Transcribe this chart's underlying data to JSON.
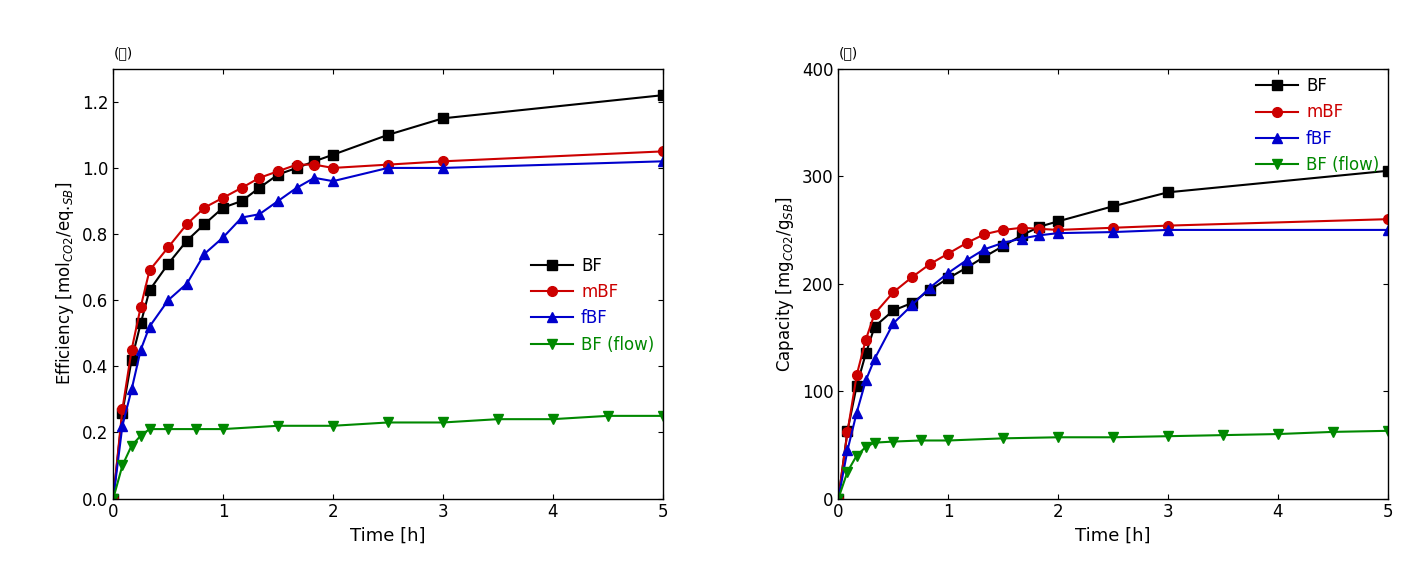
{
  "left_title": "(가)",
  "right_title": "(나)",
  "left_ylabel": "Efficiency [mol$_{CO2}$/eq.$_{SB}$]",
  "right_ylabel": "Capacity [mg$_{CO2}$/g$_{SB}$]",
  "xlabel": "Time [h]",
  "left_ylim": [
    0,
    1.3
  ],
  "right_ylim": [
    0,
    400
  ],
  "xlim": [
    0,
    5
  ],
  "series": {
    "BF": {
      "color": "#000000",
      "marker": "s",
      "markersize": 7,
      "left_x": [
        0,
        0.083,
        0.167,
        0.25,
        0.33,
        0.5,
        0.67,
        0.83,
        1.0,
        1.17,
        1.33,
        1.5,
        1.67,
        1.83,
        2.0,
        2.5,
        3.0,
        5.0
      ],
      "left_y": [
        0,
        0.26,
        0.42,
        0.53,
        0.63,
        0.71,
        0.78,
        0.83,
        0.88,
        0.9,
        0.94,
        0.98,
        1.0,
        1.02,
        1.04,
        1.1,
        1.15,
        1.22
      ],
      "right_x": [
        0,
        0.083,
        0.167,
        0.25,
        0.33,
        0.5,
        0.67,
        0.83,
        1.0,
        1.17,
        1.33,
        1.5,
        1.67,
        1.83,
        2.0,
        2.5,
        3.0,
        5.0
      ],
      "right_y": [
        0,
        63,
        105,
        135,
        160,
        175,
        182,
        194,
        205,
        215,
        225,
        235,
        245,
        253,
        258,
        272,
        285,
        305
      ]
    },
    "mBF": {
      "color": "#cc0000",
      "marker": "o",
      "markersize": 7,
      "left_x": [
        0,
        0.083,
        0.167,
        0.25,
        0.33,
        0.5,
        0.67,
        0.83,
        1.0,
        1.17,
        1.33,
        1.5,
        1.67,
        1.83,
        2.0,
        2.5,
        3.0,
        5.0
      ],
      "left_y": [
        0,
        0.27,
        0.45,
        0.58,
        0.69,
        0.76,
        0.83,
        0.88,
        0.91,
        0.94,
        0.97,
        0.99,
        1.01,
        1.01,
        1.0,
        1.01,
        1.02,
        1.05
      ],
      "right_x": [
        0,
        0.083,
        0.167,
        0.25,
        0.33,
        0.5,
        0.67,
        0.83,
        1.0,
        1.17,
        1.33,
        1.5,
        1.67,
        1.83,
        2.0,
        2.5,
        3.0,
        5.0
      ],
      "right_y": [
        0,
        62,
        115,
        148,
        172,
        192,
        206,
        218,
        228,
        238,
        246,
        250,
        252,
        251,
        250,
        252,
        254,
        260
      ]
    },
    "fBF": {
      "color": "#0000cc",
      "marker": "^",
      "markersize": 7,
      "left_x": [
        0,
        0.083,
        0.167,
        0.25,
        0.33,
        0.5,
        0.67,
        0.83,
        1.0,
        1.17,
        1.33,
        1.5,
        1.67,
        1.83,
        2.0,
        2.5,
        3.0,
        5.0
      ],
      "left_y": [
        0,
        0.22,
        0.33,
        0.45,
        0.52,
        0.6,
        0.65,
        0.74,
        0.79,
        0.85,
        0.86,
        0.9,
        0.94,
        0.97,
        0.96,
        1.0,
        1.0,
        1.02
      ],
      "right_x": [
        0,
        0.083,
        0.167,
        0.25,
        0.33,
        0.5,
        0.67,
        0.83,
        1.0,
        1.17,
        1.33,
        1.5,
        1.67,
        1.83,
        2.0,
        2.5,
        3.0,
        5.0
      ],
      "right_y": [
        0,
        45,
        80,
        110,
        130,
        163,
        180,
        196,
        210,
        222,
        232,
        238,
        242,
        245,
        247,
        248,
        250,
        250
      ]
    },
    "BF (flow)": {
      "color": "#008800",
      "marker": "v",
      "markersize": 7,
      "left_x": [
        0,
        0.083,
        0.167,
        0.25,
        0.33,
        0.5,
        0.75,
        1.0,
        1.5,
        2.0,
        2.5,
        3.0,
        3.5,
        4.0,
        4.5,
        5.0
      ],
      "left_y": [
        0,
        0.1,
        0.16,
        0.19,
        0.21,
        0.21,
        0.21,
        0.21,
        0.22,
        0.22,
        0.23,
        0.23,
        0.24,
        0.24,
        0.25,
        0.25
      ],
      "right_x": [
        0,
        0.083,
        0.167,
        0.25,
        0.33,
        0.5,
        0.75,
        1.0,
        1.5,
        2.0,
        2.5,
        3.0,
        3.5,
        4.0,
        4.5,
        5.0
      ],
      "right_y": [
        0,
        25,
        40,
        48,
        52,
        53,
        54,
        54,
        56,
        57,
        57,
        58,
        59,
        60,
        62,
        63
      ]
    }
  },
  "legend_order": [
    "BF",
    "mBF",
    "fBF",
    "BF (flow)"
  ],
  "legend_colors": {
    "BF": "#000000",
    "mBF": "#cc0000",
    "fBF": "#0000cc",
    "BF (flow)": "#008800"
  },
  "background_color": "#ffffff"
}
